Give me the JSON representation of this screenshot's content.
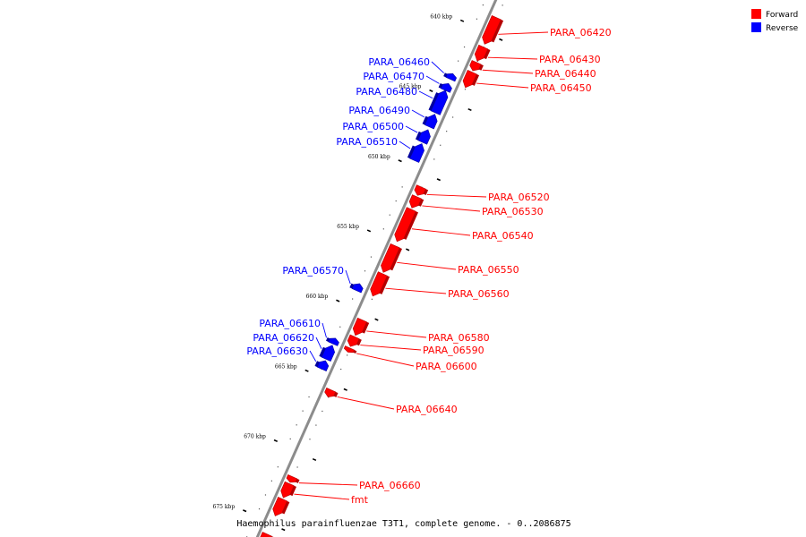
{
  "caption": "Haemophilus parainfluenzae T3T1, complete genome. - 0..2086875",
  "legend": [
    {
      "label": "Forward",
      "color": "#ff0000"
    },
    {
      "label": "Reverse",
      "color": "#0000ff"
    }
  ],
  "colors": {
    "forward": "#ff0000",
    "forward_dark": "#b40000",
    "reverse": "#0000ff",
    "reverse_dark": "#00009e",
    "backbone": "#8c8c8c"
  },
  "scale": {
    "unit": "kbp",
    "ticks": [
      {
        "kbp": 640,
        "label": "640 kbp"
      },
      {
        "kbp": 645,
        "label": "645 kbp"
      },
      {
        "kbp": 650,
        "label": "650 kbp"
      },
      {
        "kbp": 655,
        "label": "655 kbp"
      },
      {
        "kbp": 660,
        "label": "660 kbp"
      },
      {
        "kbp": 665,
        "label": "665 kbp"
      },
      {
        "kbp": 670,
        "label": "670 kbp"
      },
      {
        "kbp": 675,
        "label": "675 kbp"
      }
    ]
  },
  "genes": [
    {
      "name": "PARA_06420",
      "strand": "+",
      "start": 638.9,
      "end": 640.8
    },
    {
      "name": "PARA_06430",
      "strand": "+",
      "start": 641.0,
      "end": 642.0
    },
    {
      "name": "PARA_06440",
      "strand": "+",
      "start": 642.1,
      "end": 642.7
    },
    {
      "name": "PARA_06450",
      "strand": "+",
      "start": 642.8,
      "end": 643.9
    },
    {
      "name": "PARA_06460",
      "strand": "-",
      "start": 643.4,
      "end": 643.8
    },
    {
      "name": "PARA_06470",
      "strand": "-",
      "start": 644.1,
      "end": 644.6
    },
    {
      "name": "PARA_06480",
      "strand": "-",
      "start": 644.6,
      "end": 646.2
    },
    {
      "name": "PARA_06490",
      "strand": "-",
      "start": 646.3,
      "end": 647.2
    },
    {
      "name": "PARA_06500",
      "strand": "-",
      "start": 647.4,
      "end": 648.3
    },
    {
      "name": "PARA_06510",
      "strand": "-",
      "start": 648.4,
      "end": 649.6
    },
    {
      "name": "PARA_06520",
      "strand": "+",
      "start": 651.0,
      "end": 651.6
    },
    {
      "name": "PARA_06530",
      "strand": "+",
      "start": 651.7,
      "end": 652.5
    },
    {
      "name": "PARA_06540",
      "strand": "+",
      "start": 652.6,
      "end": 654.9
    },
    {
      "name": "PARA_06550",
      "strand": "+",
      "start": 655.2,
      "end": 657.1
    },
    {
      "name": "PARA_06560",
      "strand": "+",
      "start": 657.2,
      "end": 658.8
    },
    {
      "name": "PARA_06570",
      "strand": "-",
      "start": 658.4,
      "end": 658.9
    },
    {
      "name": "PARA_06580",
      "strand": "+",
      "start": 660.5,
      "end": 661.6
    },
    {
      "name": "PARA_06590",
      "strand": "+",
      "start": 661.7,
      "end": 662.4
    },
    {
      "name": "PARA_06600",
      "strand": "+",
      "start": 662.5,
      "end": 662.8
    },
    {
      "name": "PARA_06610",
      "strand": "-",
      "start": 662.3,
      "end": 662.7
    },
    {
      "name": "PARA_06620",
      "strand": "-",
      "start": 662.8,
      "end": 663.8
    },
    {
      "name": "PARA_06630",
      "strand": "-",
      "start": 663.9,
      "end": 664.5
    },
    {
      "name": "PARA_06640",
      "strand": "+",
      "start": 665.5,
      "end": 666.0
    },
    {
      "name": "PARA_06660",
      "strand": "+",
      "start": 671.7,
      "end": 672.1
    },
    {
      "name": "fmt",
      "strand": "+",
      "start": 672.2,
      "end": 673.2
    },
    {
      "name": "",
      "strand": "+",
      "start": 673.3,
      "end": 674.5
    },
    {
      "name": "",
      "strand": "+",
      "start": 675.8,
      "end": 676.5
    }
  ]
}
